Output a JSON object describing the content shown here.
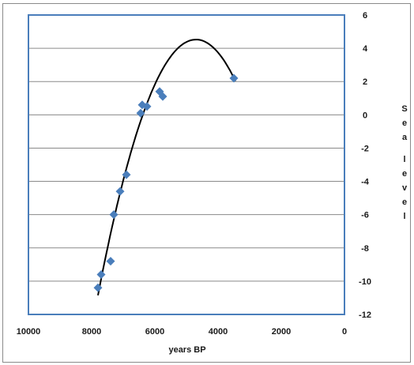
{
  "chart_data": {
    "type": "scatter",
    "title": "",
    "xlabel": "years BP",
    "ylabel": "Sea level",
    "xlim": [
      10000,
      0
    ],
    "ylim": [
      -12,
      6
    ],
    "x_ticks": [
      "10000",
      "8000",
      "6000",
      "4000",
      "2000",
      "0"
    ],
    "y_ticks": [
      "6",
      "4",
      "2",
      "0",
      "-2",
      "-4",
      "-6",
      "-8",
      "-10",
      "-12"
    ],
    "grid": "horizontal",
    "legend": "none",
    "colors": {
      "points": "#4a7ebb",
      "trendline": "#000000",
      "plot_border": "#4a7ebb",
      "gridlines": "#8a8a8a"
    },
    "series": [
      {
        "marker": "diamond",
        "points": [
          {
            "x": 7800,
            "y": -10.4
          },
          {
            "x": 7700,
            "y": -9.6
          },
          {
            "x": 7400,
            "y": -8.8
          },
          {
            "x": 7300,
            "y": -6.0
          },
          {
            "x": 7100,
            "y": -4.6
          },
          {
            "x": 6900,
            "y": -3.6
          },
          {
            "x": 6450,
            "y": 0.1
          },
          {
            "x": 6400,
            "y": 0.6
          },
          {
            "x": 6250,
            "y": 0.5
          },
          {
            "x": 5850,
            "y": 1.4
          },
          {
            "x": 5750,
            "y": 1.1
          },
          {
            "x": 3500,
            "y": 2.2
          }
        ]
      }
    ],
    "trendline": {
      "type": "polynomial",
      "x_range": [
        7800,
        3450
      ],
      "points": [
        {
          "x": 7800,
          "y": -11.0
        },
        {
          "x": 6400,
          "y": 0.3
        },
        {
          "x": 4700,
          "y": 4.1
        },
        {
          "x": 3450,
          "y": 2.2
        }
      ]
    }
  }
}
